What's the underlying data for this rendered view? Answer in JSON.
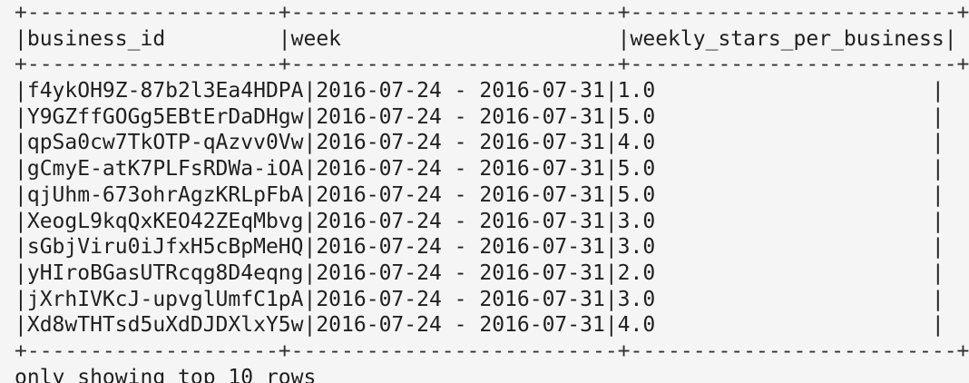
{
  "table": {
    "border_line": "+--------------------+--------------------------+--------------------------+",
    "header_row": "|business_id         |week                      |weekly_stars_per_business|",
    "rows": [
      "|f4ykOH9Z-87b2l3Ea4HDPA|2016-07-24 - 2016-07-31|1.0                      |",
      "|Y9GZffGOGg5EBtErDaDHgw|2016-07-24 - 2016-07-31|5.0                      |",
      "|qpSa0cw7TkOTP-qAzvv0Vw|2016-07-24 - 2016-07-31|4.0                      |",
      "|gCmyE-atK7PLFsRDWa-iOA|2016-07-24 - 2016-07-31|5.0                      |",
      "|qjUhm-673ohrAgzKRLpFbA|2016-07-24 - 2016-07-31|5.0                      |",
      "|XeogL9kqQxKEO42ZEqMbvg|2016-07-24 - 2016-07-31|3.0                      |",
      "|sGbjViru0iJfxH5cBpMeHQ|2016-07-24 - 2016-07-31|3.0                      |",
      "|yHIroBGasUTRcqg8D4eqng|2016-07-24 - 2016-07-31|2.0                      |",
      "|jXrhIVKcJ-upvglUmfC1pA|2016-07-24 - 2016-07-31|3.0                      |",
      "|Xd8wTHTsd5uXdDJDXlxY5w|2016-07-24 - 2016-07-31|4.0                      |"
    ]
  },
  "footer_text": "only showing top 10 rows"
}
